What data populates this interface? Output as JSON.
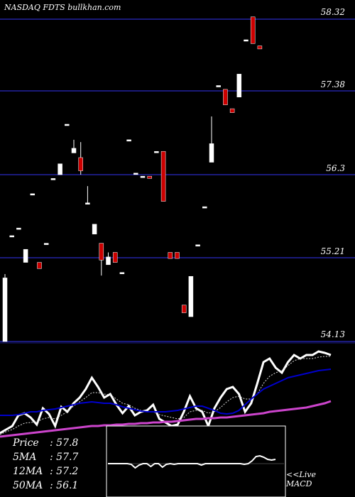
{
  "header": {
    "title": "NASDAQ FDTS bullkhan.com"
  },
  "stats": [
    {
      "label": "Price",
      "value": ": 57.8"
    },
    {
      "label": "5MA",
      "value": ": 57.7"
    },
    {
      "label": "12MA",
      "value": ": 57.2"
    },
    {
      "label": "50MA",
      "value": ": 56.1"
    }
  ],
  "macd_label": {
    "line1": "<<Live",
    "line2": "MACD"
  },
  "colors": {
    "up": "#ffffff",
    "down": "#cc0000",
    "gridline": "#1a1a7a",
    "ma_fast": "#0000cc",
    "ma_slow": "#cc44cc"
  },
  "chart_data": [
    {
      "type": "candlestick",
      "title": "NASDAQ FDTS bullkhan.com",
      "yticks": [
        58.32,
        57.38,
        56.3,
        55.21,
        54.13
      ],
      "ylim": [
        54.05,
        58.4
      ],
      "grid": true,
      "candles": [
        {
          "open": 54.13,
          "close": 54.95,
          "high": 55.0,
          "low": 54.13
        },
        {
          "open": 55.5,
          "close": 55.5,
          "high": 55.5,
          "low": 55.5
        },
        {
          "open": 55.6,
          "close": 55.6,
          "high": 55.6,
          "low": 55.6
        },
        {
          "open": 55.15,
          "close": 55.32,
          "high": 55.32,
          "low": 55.15
        },
        {
          "open": 56.05,
          "close": 56.05,
          "high": 56.05,
          "low": 56.05
        },
        {
          "open": 55.15,
          "close": 55.07,
          "high": 55.15,
          "low": 55.07
        },
        {
          "open": 55.4,
          "close": 55.4,
          "high": 55.4,
          "low": 55.4
        },
        {
          "open": 56.25,
          "close": 56.25,
          "high": 56.25,
          "low": 56.25
        },
        {
          "open": 56.3,
          "close": 56.44,
          "high": 56.44,
          "low": 56.3
        },
        {
          "open": 56.95,
          "close": 56.95,
          "high": 56.95,
          "low": 56.95
        },
        {
          "open": 56.58,
          "close": 56.64,
          "high": 56.75,
          "low": 56.58
        },
        {
          "open": 56.52,
          "close": 56.35,
          "high": 56.72,
          "low": 56.3
        },
        {
          "open": 55.93,
          "close": 55.93,
          "high": 56.15,
          "low": 55.93
        },
        {
          "open": 55.52,
          "close": 55.65,
          "high": 55.65,
          "low": 55.52
        },
        {
          "open": 55.4,
          "close": 55.18,
          "high": 55.4,
          "low": 54.98
        },
        {
          "open": 55.12,
          "close": 55.22,
          "high": 55.28,
          "low": 55.12
        },
        {
          "open": 55.28,
          "close": 55.15,
          "high": 55.28,
          "low": 55.15
        },
        {
          "open": 55.02,
          "close": 55.02,
          "high": 55.02,
          "low": 55.02
        },
        {
          "open": 56.75,
          "close": 56.75,
          "high": 56.75,
          "low": 56.75
        },
        {
          "open": 56.32,
          "close": 56.32,
          "high": 56.32,
          "low": 56.32
        },
        {
          "open": 56.28,
          "close": 56.28,
          "high": 56.28,
          "low": 56.28
        },
        {
          "open": 56.28,
          "close": 56.25,
          "high": 56.28,
          "low": 56.25
        },
        {
          "open": 56.6,
          "close": 56.6,
          "high": 56.6,
          "low": 56.6
        },
        {
          "open": 56.6,
          "close": 55.95,
          "high": 56.6,
          "low": 55.95
        },
        {
          "open": 55.28,
          "close": 55.2,
          "high": 55.28,
          "low": 55.2
        },
        {
          "open": 55.28,
          "close": 55.2,
          "high": 55.28,
          "low": 55.2
        },
        {
          "open": 54.6,
          "close": 54.5,
          "high": 54.6,
          "low": 54.5
        },
        {
          "open": 54.45,
          "close": 54.97,
          "high": 54.97,
          "low": 54.45
        },
        {
          "open": 55.38,
          "close": 55.38,
          "high": 55.38,
          "low": 55.38
        },
        {
          "open": 55.88,
          "close": 55.88,
          "high": 55.88,
          "low": 55.88
        },
        {
          "open": 56.46,
          "close": 56.7,
          "high": 57.05,
          "low": 56.46
        },
        {
          "open": 57.45,
          "close": 57.45,
          "high": 57.45,
          "low": 57.45
        },
        {
          "open": 57.4,
          "close": 57.2,
          "high": 57.4,
          "low": 57.2
        },
        {
          "open": 57.15,
          "close": 57.1,
          "high": 57.15,
          "low": 57.1
        },
        {
          "open": 57.3,
          "close": 57.6,
          "high": 57.6,
          "low": 57.3
        },
        {
          "open": 58.05,
          "close": 58.05,
          "high": 58.05,
          "low": 58.05
        },
        {
          "open": 58.35,
          "close": 58.0,
          "high": 58.35,
          "low": 58.0
        },
        {
          "open": 57.97,
          "close": 57.93,
          "high": 57.97,
          "low": 57.93
        }
      ]
    },
    {
      "type": "line",
      "series": [
        {
          "values": [
            610,
            605,
            600,
            585,
            582,
            588,
            598,
            575,
            583,
            600,
            573,
            580,
            568,
            560,
            548,
            532,
            545,
            560,
            555,
            570,
            582,
            572,
            585,
            580,
            578,
            570,
            590,
            595,
            600,
            598,
            580,
            558,
            575,
            580,
            600,
            575,
            560,
            548,
            545,
            555,
            580,
            568,
            540,
            510,
            505,
            518,
            525,
            510,
            500,
            505,
            500,
            500,
            495,
            497,
            500
          ]
        },
        {
          "values": [
            612,
            608,
            605,
            600,
            596,
            595,
            594,
            590,
            588,
            590,
            585,
            580,
            572,
            566,
            560,
            553,
            553,
            555,
            556,
            562,
            568,
            570,
            575,
            578,
            580,
            580,
            584,
            586,
            588,
            590,
            588,
            580,
            578,
            578,
            582,
            580,
            574,
            566,
            560,
            558,
            562,
            562,
            555,
            540,
            530,
            525,
            522,
            515,
            508,
            505,
            505,
            505,
            503,
            502,
            502
          ]
        },
        {
          "values": [
            585,
            585,
            585,
            584,
            582,
            580,
            580,
            578,
            577,
            576,
            574,
            572,
            570,
            568,
            567,
            566,
            567,
            568,
            568,
            570,
            573,
            575,
            577,
            579,
            580,
            580,
            580,
            580,
            579,
            578,
            576,
            574,
            572,
            572,
            575,
            578,
            582,
            583,
            582,
            578,
            570,
            562,
            555,
            548,
            544,
            540,
            536,
            532,
            530,
            528,
            526,
            524,
            522,
            521,
            520
          ]
        },
        {
          "values": [
            615,
            614,
            613,
            612,
            611,
            610,
            609,
            608,
            607,
            606,
            605,
            604,
            603,
            602,
            601,
            600,
            600,
            599,
            599,
            598,
            598,
            597,
            597,
            596,
            596,
            595,
            595,
            594,
            594,
            593,
            592,
            591,
            590,
            590,
            589,
            589,
            588,
            588,
            587,
            586,
            585,
            584,
            583,
            582,
            580,
            579,
            578,
            577,
            576,
            575,
            574,
            572,
            570,
            568,
            565
          ]
        }
      ]
    },
    {
      "type": "line",
      "series": [
        {
          "values": [
            0,
            0,
            0,
            0,
            0,
            0,
            1,
            6,
            2,
            0,
            0,
            4,
            0,
            0,
            5,
            1,
            0,
            1,
            0,
            0,
            0,
            0,
            0,
            0,
            2,
            0,
            0,
            0,
            0,
            0,
            0,
            0,
            0,
            0,
            0,
            1,
            0,
            -4,
            -10,
            -11,
            -9,
            -6,
            -5,
            -6
          ]
        }
      ]
    }
  ]
}
